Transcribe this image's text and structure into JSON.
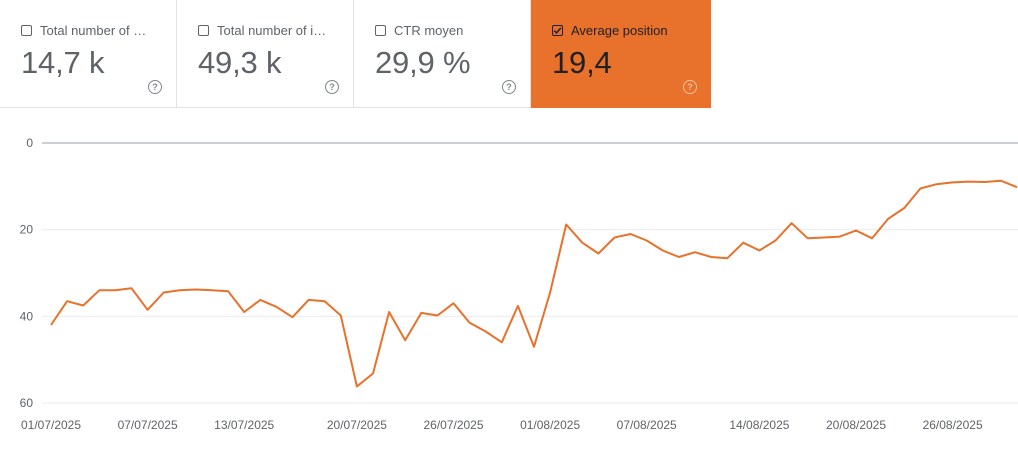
{
  "cards": [
    {
      "label": "Total number of c…",
      "value": "14,7 k",
      "checked": false
    },
    {
      "label": "Total number of i…",
      "value": "49,3 k",
      "checked": false
    },
    {
      "label": "CTR moyen",
      "value": "29,9 %",
      "checked": false
    },
    {
      "label": "Average position",
      "value": "19,4",
      "checked": true
    }
  ],
  "help_glyph": "?",
  "colors": {
    "accent": "#e8712b",
    "line": "#e8712b",
    "grid": "#ececec",
    "axis": "#9aa0a6"
  },
  "chart_data": {
    "type": "line",
    "y_reversed": true,
    "ylim": [
      0,
      60
    ],
    "y_ticks": [
      "0",
      "20",
      "40",
      "60"
    ],
    "x_tick_labels": [
      "01/07/2025",
      "07/07/2025",
      "13/07/2025",
      "20/07/2025",
      "26/07/2025",
      "01/08/2025",
      "07/08/2025",
      "14/08/2025",
      "20/08/2025",
      "26/08/2025"
    ],
    "x_tick_dates": [
      "2025-07-01",
      "2025-07-07",
      "2025-07-13",
      "2025-07-20",
      "2025-07-26",
      "2025-08-01",
      "2025-08-07",
      "2025-08-14",
      "2025-08-20",
      "2025-08-26"
    ],
    "series": [
      {
        "points": [
          [
            "2025-07-01",
            42.0
          ],
          [
            "2025-07-02",
            36.5
          ],
          [
            "2025-07-03",
            37.5
          ],
          [
            "2025-07-04",
            34.0
          ],
          [
            "2025-07-05",
            34.0
          ],
          [
            "2025-07-06",
            33.5
          ],
          [
            "2025-07-07",
            38.5
          ],
          [
            "2025-07-08",
            34.5
          ],
          [
            "2025-07-09",
            34.0
          ],
          [
            "2025-07-10",
            33.8
          ],
          [
            "2025-07-11",
            34.0
          ],
          [
            "2025-07-12",
            34.2
          ],
          [
            "2025-07-13",
            39.0
          ],
          [
            "2025-07-14",
            36.2
          ],
          [
            "2025-07-15",
            37.8
          ],
          [
            "2025-07-16",
            40.2
          ],
          [
            "2025-07-17",
            36.2
          ],
          [
            "2025-07-18",
            36.5
          ],
          [
            "2025-07-19",
            39.8
          ],
          [
            "2025-07-20",
            56.2
          ],
          [
            "2025-07-21",
            53.2
          ],
          [
            "2025-07-22",
            39.0
          ],
          [
            "2025-07-23",
            45.5
          ],
          [
            "2025-07-24",
            39.2
          ],
          [
            "2025-07-25",
            39.8
          ],
          [
            "2025-07-26",
            37.0
          ],
          [
            "2025-07-27",
            41.5
          ],
          [
            "2025-07-28",
            43.5
          ],
          [
            "2025-07-29",
            46.0
          ],
          [
            "2025-07-30",
            37.6
          ],
          [
            "2025-07-31",
            47.0
          ],
          [
            "2025-08-01",
            34.5
          ],
          [
            "2025-08-02",
            18.8
          ],
          [
            "2025-08-03",
            23.0
          ],
          [
            "2025-08-04",
            25.5
          ],
          [
            "2025-08-05",
            21.8
          ],
          [
            "2025-08-06",
            21.0
          ],
          [
            "2025-08-07",
            22.5
          ],
          [
            "2025-08-08",
            24.8
          ],
          [
            "2025-08-09",
            26.3
          ],
          [
            "2025-08-10",
            25.2
          ],
          [
            "2025-08-11",
            26.3
          ],
          [
            "2025-08-12",
            26.6
          ],
          [
            "2025-08-13",
            23.0
          ],
          [
            "2025-08-14",
            24.8
          ],
          [
            "2025-08-15",
            22.5
          ],
          [
            "2025-08-16",
            18.5
          ],
          [
            "2025-08-17",
            22.0
          ],
          [
            "2025-08-18",
            21.8
          ],
          [
            "2025-08-19",
            21.6
          ],
          [
            "2025-08-20",
            20.2
          ],
          [
            "2025-08-21",
            22.0
          ],
          [
            "2025-08-22",
            17.5
          ],
          [
            "2025-08-23",
            15.0
          ],
          [
            "2025-08-24",
            10.5
          ],
          [
            "2025-08-25",
            9.5
          ],
          [
            "2025-08-26",
            9.1
          ],
          [
            "2025-08-27",
            8.9
          ],
          [
            "2025-08-28",
            9.0
          ],
          [
            "2025-08-29",
            8.7
          ],
          [
            "2025-08-30",
            10.2
          ]
        ]
      }
    ]
  }
}
